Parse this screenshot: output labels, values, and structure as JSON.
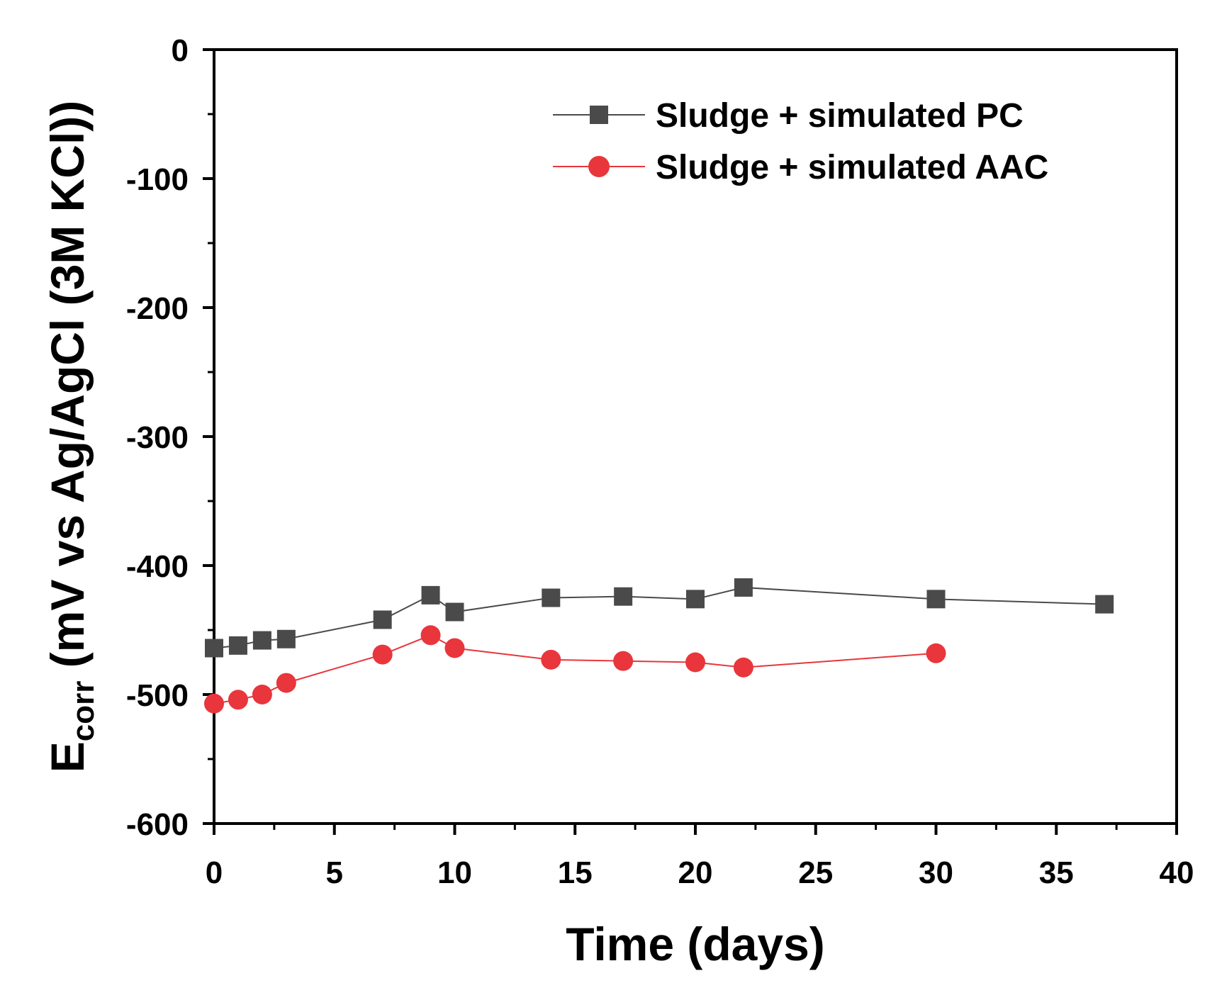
{
  "chart_data": {
    "type": "line",
    "xlabel": "Time (days)",
    "ylabel": {
      "main": "E",
      "subscript": "corr",
      "rest": " (mV vs Ag/AgCl (3M KCl))"
    },
    "xlim": [
      0,
      40
    ],
    "ylim": [
      -600,
      0
    ],
    "xticks": [
      0,
      5,
      10,
      15,
      20,
      25,
      30,
      35,
      40
    ],
    "yticks": [
      0,
      -100,
      -200,
      -300,
      -400,
      -500,
      -600
    ],
    "xtick_labels": [
      "0",
      "5",
      "10",
      "15",
      "20",
      "25",
      "30",
      "35",
      "40"
    ],
    "ytick_labels": [
      "0",
      "-100",
      "-200",
      "-300",
      "-400",
      "-500",
      "-600"
    ],
    "grid": false,
    "legend_position": "top-right",
    "series": [
      {
        "name": "Sludge + simulated PC",
        "color": "#4a4a4a",
        "marker": "square",
        "x": [
          0,
          1,
          2,
          3,
          7,
          9,
          10,
          14,
          17,
          20,
          22,
          30,
          37
        ],
        "y": [
          -464,
          -462,
          -458,
          -457,
          -442,
          -423,
          -436,
          -425,
          -424,
          -426,
          -417,
          -426,
          -430
        ]
      },
      {
        "name": "Sludge + simulated AAC",
        "color": "#e8363c",
        "marker": "circle",
        "x": [
          0,
          1,
          2,
          3,
          7,
          9,
          10,
          14,
          17,
          20,
          22,
          30
        ],
        "y": [
          -507,
          -504,
          -500,
          -491,
          -469,
          -454,
          -464,
          -473,
          -474,
          -475,
          -479,
          -468
        ]
      }
    ]
  }
}
